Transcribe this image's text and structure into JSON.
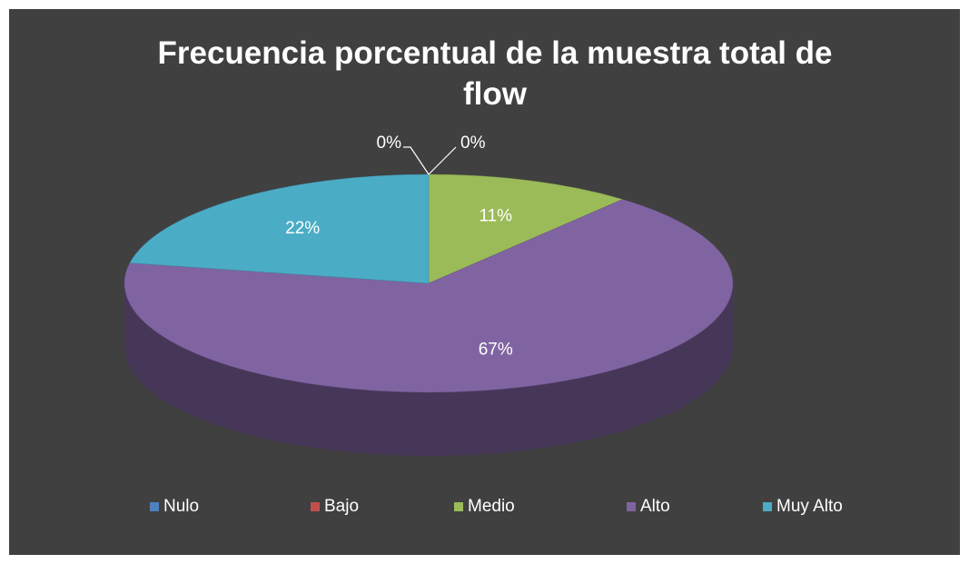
{
  "chart_data": {
    "type": "pie",
    "title": "Frecuencia porcentual de la muestra total de flow",
    "categories": [
      "Nulo",
      "Bajo",
      "Medio",
      "Alto",
      "Muy Alto"
    ],
    "values": [
      0,
      0,
      11,
      67,
      22
    ],
    "value_labels": [
      "0%",
      "0%",
      "11%",
      "67%",
      "22%"
    ],
    "colors": [
      "#4f81bd",
      "#c0504d",
      "#9bbb59",
      "#8064a2",
      "#4bacc6"
    ],
    "legend": "bottom"
  }
}
